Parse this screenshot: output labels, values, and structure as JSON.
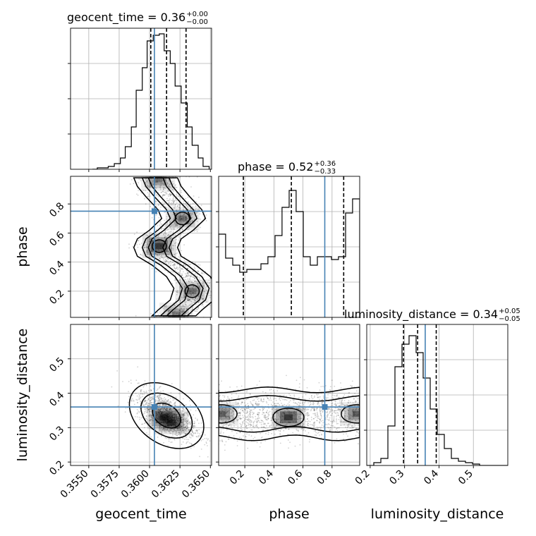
{
  "chart_data": {
    "type": "scatter",
    "corner_plot": true,
    "grid": true,
    "truth_color": "#4682b4",
    "panel_bg": "#ffffff",
    "parameters": [
      "geocent_time",
      "phase",
      "luminosity_distance"
    ],
    "truths": {
      "geocent_time": 0.3604,
      "phase": 0.75,
      "luminosity_distance": 0.36
    },
    "titles": [
      {
        "param": "geocent_time",
        "label": "geocent_time = 0.36",
        "sup": "+0.00",
        "sub": "−0.00"
      },
      {
        "param": "phase",
        "label": "phase = 0.52",
        "sup": "+0.36",
        "sub": "−0.33"
      },
      {
        "param": "luminosity_distance",
        "label": "luminosity_distance = 0.34",
        "sup": "+0.05",
        "sub": "−0.05"
      }
    ],
    "axes": {
      "geocent_time": {
        "range": [
          0.3535,
          0.3651
        ],
        "ticks": [
          0.355,
          0.3575,
          0.36,
          0.3625,
          0.365
        ],
        "tick_labels": [
          "0.3550",
          "0.3575",
          "0.3600",
          "0.3625",
          "0.3650"
        ]
      },
      "phase": {
        "range": [
          0.02,
          0.99
        ],
        "ticks": [
          0.2,
          0.4,
          0.6,
          0.8
        ],
        "tick_labels": [
          "0.2",
          "0.4",
          "0.6",
          "0.8"
        ]
      },
      "luminosity_distance": {
        "range": [
          0.19,
          0.6
        ],
        "ticks": [
          0.2,
          0.3,
          0.4,
          0.5
        ],
        "tick_labels": [
          "0.2",
          "0.3",
          "0.4",
          "0.5"
        ]
      }
    },
    "diagonal_histograms": [
      {
        "param": "geocent_time",
        "quantiles": [
          0.3601,
          0.3614,
          0.363
        ],
        "ymax": 1.0,
        "bin_edges": [
          0.3553,
          0.3557,
          0.3562,
          0.3566,
          0.3571,
          0.3576,
          0.358,
          0.3585,
          0.3589,
          0.3594,
          0.3598,
          0.3603,
          0.3608,
          0.3612,
          0.3617,
          0.3621,
          0.3626,
          0.3631,
          0.3635,
          0.364,
          0.3644,
          0.3649
        ],
        "values": [
          0.0,
          0.01,
          0.01,
          0.02,
          0.04,
          0.08,
          0.16,
          0.3,
          0.56,
          0.72,
          0.91,
          0.95,
          0.96,
          0.84,
          0.75,
          0.59,
          0.47,
          0.3,
          0.17,
          0.08,
          0.02
        ]
      },
      {
        "param": "phase",
        "quantiles": [
          0.19,
          0.52,
          0.88
        ],
        "ymax": 1.0,
        "bin_edges": [
          0.02,
          0.068,
          0.117,
          0.165,
          0.214,
          0.262,
          0.311,
          0.359,
          0.408,
          0.456,
          0.505,
          0.553,
          0.602,
          0.65,
          0.699,
          0.747,
          0.796,
          0.844,
          0.893,
          0.941,
          0.99
        ],
        "values": [
          0.59,
          0.42,
          0.37,
          0.32,
          0.34,
          0.34,
          0.38,
          0.43,
          0.58,
          0.78,
          0.9,
          0.75,
          0.43,
          0.37,
          0.43,
          0.43,
          0.41,
          0.43,
          0.74,
          0.84
        ]
      },
      {
        "param": "luminosity_distance",
        "quantiles": [
          0.297,
          0.338,
          0.392
        ],
        "ymax": 1.0,
        "bin_edges": [
          0.19,
          0.2105,
          0.231,
          0.2515,
          0.272,
          0.2925,
          0.313,
          0.3335,
          0.354,
          0.3745,
          0.395,
          0.4155,
          0.436,
          0.4565,
          0.477,
          0.4975,
          0.518,
          0.5385,
          0.559,
          0.5795,
          0.6
        ],
        "values": [
          0.0,
          0.02,
          0.05,
          0.28,
          0.7,
          0.86,
          0.92,
          0.8,
          0.62,
          0.4,
          0.22,
          0.12,
          0.05,
          0.03,
          0.02,
          0.01,
          0.0,
          0.0,
          0.0,
          0.0
        ]
      }
    ],
    "density_panels": [
      {
        "x": "geocent_time",
        "y": "phase",
        "ridge": [
          [
            0.3605,
            0.98
          ],
          [
            0.3608,
            0.92
          ],
          [
            0.3615,
            0.85
          ],
          [
            0.3625,
            0.76
          ],
          [
            0.3628,
            0.7
          ],
          [
            0.3618,
            0.62
          ],
          [
            0.3608,
            0.56
          ],
          [
            0.3605,
            0.5
          ],
          [
            0.3608,
            0.44
          ],
          [
            0.362,
            0.38
          ],
          [
            0.3632,
            0.3
          ],
          [
            0.3638,
            0.22
          ],
          [
            0.3635,
            0.14
          ],
          [
            0.3625,
            0.07
          ],
          [
            0.362,
            0.03
          ]
        ],
        "hotspots": [
          [
            0.3608,
            0.51,
            1.0
          ],
          [
            0.3627,
            0.7,
            0.6
          ],
          [
            0.3635,
            0.2,
            0.6
          ],
          [
            0.3607,
            0.97,
            0.6
          ],
          [
            0.3622,
            0.04,
            0.55
          ]
        ]
      },
      {
        "x": "geocent_time",
        "y": "luminosity_distance",
        "center": [
          0.3614,
          0.335
        ],
        "hotspots": [
          [
            0.3612,
            0.33,
            1.0
          ],
          [
            0.3618,
            0.315,
            0.85
          ]
        ]
      },
      {
        "x": "phase",
        "y": "luminosity_distance",
        "band_center": 0.34,
        "hotspots": [
          [
            0.5,
            0.33,
            1.0
          ],
          [
            0.04,
            0.34,
            0.7
          ],
          [
            0.97,
            0.34,
            0.7
          ]
        ]
      }
    ]
  }
}
